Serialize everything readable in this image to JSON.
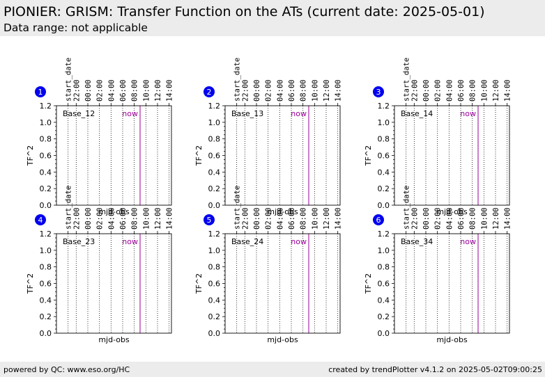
{
  "header": {
    "title": "PIONIER: GRISM: Transfer Function on the ATs (current date: 2025-05-01)",
    "subtitle": "Data range: not applicable"
  },
  "footer": {
    "left": "powered by QC: www.eso.org/HC",
    "right": "created by trendPlotter v4.1.2 on 2025-05-02T09:00:25"
  },
  "colors": {
    "now_line": "#990099",
    "badge": "#0000ee",
    "header_bg": "#ececec"
  },
  "chart_data": {
    "type": "scatter",
    "shared": {
      "xlabel": "mjd-obs",
      "ylabel": "TF^2",
      "ylim": [
        0,
        1.2
      ],
      "yticks": [
        "0.0",
        "0.2",
        "0.4",
        "0.6",
        "0.8",
        "1.0",
        "1.2"
      ],
      "top_xticks": [
        "start_date",
        "22:00",
        "00:00",
        "02:00",
        "04:00",
        "06:00",
        "08:00",
        "10:00",
        "12:00",
        "14:00"
      ],
      "top_xtick_hours": [
        -3.4,
        -2,
        0,
        2,
        4,
        6,
        8,
        10,
        12,
        14
      ],
      "x_range_hours": [
        -5.4,
        14.4
      ],
      "now_hour": 9.0,
      "now_label": "now",
      "grid": "vertical dotted at top ticks",
      "series": []
    },
    "panels": [
      {
        "number": "1",
        "label": "Base_12"
      },
      {
        "number": "2",
        "label": "Base_13"
      },
      {
        "number": "3",
        "label": "Base_14"
      },
      {
        "number": "4",
        "label": "Base_23"
      },
      {
        "number": "5",
        "label": "Base_24"
      },
      {
        "number": "6",
        "label": "Base_34"
      }
    ]
  }
}
